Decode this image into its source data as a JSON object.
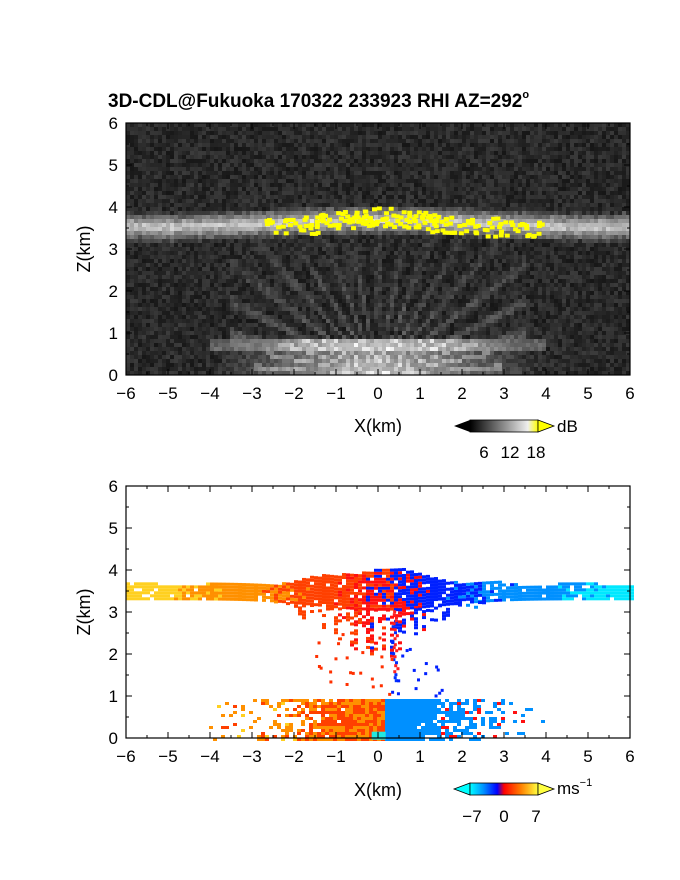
{
  "title_main": "3D-CDL@Fukuoka 170322 233923 RHI AZ=292",
  "title_degree": "o",
  "chart_data": [
    {
      "type": "heatmap",
      "name": "reflectivity",
      "xlabel": "X(km)",
      "ylabel": "Z(km)",
      "xlim": [
        -6,
        6
      ],
      "ylim": [
        0,
        6
      ],
      "xticks": [
        "−6",
        "−5",
        "−4",
        "−3",
        "−2",
        "−1",
        "0",
        "1",
        "2",
        "3",
        "4",
        "5",
        "6"
      ],
      "yticks": [
        "0",
        "1",
        "2",
        "3",
        "4",
        "5",
        "6"
      ],
      "colorbar": {
        "unit": "dB",
        "ticks": [
          "6",
          "12",
          "18"
        ],
        "range": [
          0,
          21
        ]
      },
      "colors": {
        "background": "#262626",
        "saturated": "#ffff00"
      },
      "features": {
        "cloud_layer_base_km": 3.25,
        "cloud_layer_top_km": 3.95,
        "saturated_x_range_km": [
          -2.8,
          4.0
        ],
        "near_ground_layer_top_km": 0.9
      }
    },
    {
      "type": "heatmap",
      "name": "doppler_velocity",
      "xlabel": "X(km)",
      "ylabel": "Z(km)",
      "xlim": [
        -6,
        6
      ],
      "ylim": [
        0,
        6
      ],
      "xticks": [
        "−6",
        "−5",
        "−4",
        "−3",
        "−2",
        "−1",
        "0",
        "1",
        "2",
        "3",
        "4",
        "5",
        "6"
      ],
      "yticks": [
        "0",
        "1",
        "2",
        "3",
        "4",
        "5",
        "6"
      ],
      "colorbar": {
        "unit": "ms",
        "unit_exp": "−1",
        "ticks": [
          "−7",
          "0",
          "7"
        ],
        "range": [
          -9,
          9
        ]
      },
      "colors": {
        "negative": "#0000ff",
        "near_zero": "#ff2000",
        "positive": "#ffff40"
      },
      "features": {
        "upper_layer_x_range_km": [
          -6.0,
          6.0
        ],
        "upper_layer_z_range_km": [
          3.0,
          4.15
        ],
        "upper_velocity_left_ms": 7,
        "upper_velocity_right_ms": -7,
        "lower_layer_x_range_km": [
          -4.5,
          4.0
        ],
        "lower_layer_z_range_km": [
          0.0,
          0.95
        ]
      }
    }
  ]
}
